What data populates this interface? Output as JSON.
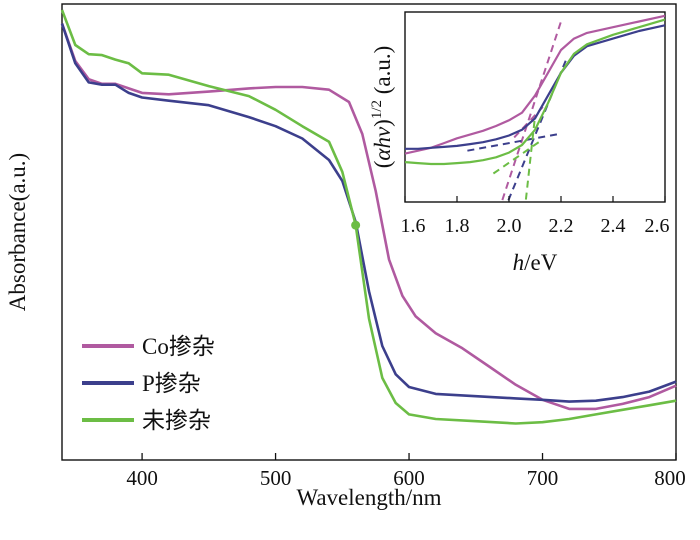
{
  "colors": {
    "co": "#b05aa0",
    "p": "#3c3f8c",
    "undoped": "#6cbd45"
  },
  "chart_data": [
    {
      "type": "line",
      "xlabel": "Wavelength/nm",
      "ylabel": "Absorbance(a.u.)",
      "xlim": [
        340,
        800
      ],
      "ylim": [
        0,
        1
      ],
      "xticks": [
        "400",
        "500",
        "600",
        "700",
        "800"
      ],
      "xtick_values": [
        400,
        500,
        600,
        700,
        800
      ],
      "legend_position": "bottom-left",
      "series": [
        {
          "name": "Co掺杂",
          "color": "#b05aa0",
          "x": [
            340,
            350,
            360,
            370,
            380,
            390,
            400,
            420,
            450,
            480,
            500,
            520,
            540,
            555,
            565,
            575,
            585,
            595,
            605,
            620,
            640,
            660,
            680,
            700,
            720,
            740,
            760,
            780,
            800
          ],
          "y": [
            0.957,
            0.875,
            0.835,
            0.825,
            0.825,
            0.815,
            0.805,
            0.802,
            0.808,
            0.815,
            0.818,
            0.818,
            0.812,
            0.785,
            0.715,
            0.59,
            0.44,
            0.36,
            0.315,
            0.278,
            0.245,
            0.205,
            0.165,
            0.132,
            0.112,
            0.112,
            0.123,
            0.138,
            0.163
          ]
        },
        {
          "name": "P掺杂",
          "color": "#3c3f8c",
          "x": [
            340,
            350,
            360,
            370,
            380,
            390,
            400,
            420,
            450,
            480,
            500,
            520,
            540,
            550,
            560,
            570,
            580,
            590,
            600,
            620,
            650,
            680,
            700,
            720,
            740,
            760,
            780,
            800
          ],
          "y": [
            0.957,
            0.87,
            0.828,
            0.823,
            0.823,
            0.805,
            0.795,
            0.788,
            0.778,
            0.752,
            0.732,
            0.705,
            0.658,
            0.612,
            0.522,
            0.37,
            0.25,
            0.188,
            0.16,
            0.145,
            0.14,
            0.135,
            0.132,
            0.128,
            0.13,
            0.138,
            0.15,
            0.172
          ]
        },
        {
          "name": "未掺杂",
          "color": "#6cbd45",
          "x": [
            340,
            350,
            360,
            370,
            380,
            390,
            400,
            420,
            450,
            480,
            500,
            520,
            540,
            550,
            560,
            570,
            580,
            590,
            600,
            620,
            650,
            680,
            700,
            720,
            740,
            760,
            780,
            800
          ],
          "y": [
            0.987,
            0.91,
            0.89,
            0.888,
            0.878,
            0.87,
            0.848,
            0.845,
            0.82,
            0.798,
            0.768,
            0.732,
            0.698,
            0.632,
            0.515,
            0.31,
            0.18,
            0.125,
            0.1,
            0.09,
            0.085,
            0.08,
            0.083,
            0.09,
            0.1,
            0.11,
            0.12,
            0.13
          ]
        }
      ]
    },
    {
      "type": "line",
      "xlabel_italic": "h",
      "xlabel_rest": "/eV",
      "ylabel_paren_open": "(",
      "ylabel_italic": "αhv",
      "ylabel_paren_close": ")",
      "ylabel_sup": "1/2",
      "ylabel_units": " (a.u.)",
      "xlim": [
        1.6,
        2.6
      ],
      "ylim": [
        0,
        1
      ],
      "xticks": [
        "1.6",
        "1.8",
        "2.0",
        "2.2",
        "2.4",
        "2.6"
      ],
      "xtick_values": [
        1.6,
        1.8,
        2.0,
        2.2,
        2.4,
        2.6
      ],
      "series": [
        {
          "name": "Co掺杂",
          "color": "#b05aa0",
          "x": [
            1.6,
            1.65,
            1.7,
            1.75,
            1.8,
            1.85,
            1.9,
            1.95,
            2.0,
            2.05,
            2.1,
            2.15,
            2.2,
            2.25,
            2.3,
            2.4,
            2.5,
            2.6
          ],
          "y": [
            0.255,
            0.27,
            0.285,
            0.31,
            0.335,
            0.355,
            0.375,
            0.4,
            0.43,
            0.47,
            0.56,
            0.68,
            0.8,
            0.86,
            0.89,
            0.92,
            0.95,
            0.98
          ]
        },
        {
          "name": "P掺杂",
          "color": "#3c3f8c",
          "x": [
            1.6,
            1.65,
            1.7,
            1.75,
            1.8,
            1.85,
            1.9,
            1.95,
            2.0,
            2.05,
            2.1,
            2.15,
            2.2,
            2.25,
            2.3,
            2.4,
            2.5,
            2.6
          ],
          "y": [
            0.28,
            0.28,
            0.285,
            0.29,
            0.295,
            0.305,
            0.315,
            0.33,
            0.35,
            0.38,
            0.44,
            0.56,
            0.68,
            0.77,
            0.82,
            0.86,
            0.9,
            0.93
          ]
        },
        {
          "name": "未掺杂",
          "color": "#6cbd45",
          "x": [
            1.6,
            1.65,
            1.7,
            1.75,
            1.8,
            1.85,
            1.9,
            1.95,
            2.0,
            2.05,
            2.1,
            2.15,
            2.2,
            2.25,
            2.3,
            2.4,
            2.5,
            2.6
          ],
          "y": [
            0.21,
            0.205,
            0.2,
            0.2,
            0.205,
            0.21,
            0.22,
            0.235,
            0.26,
            0.3,
            0.38,
            0.52,
            0.68,
            0.78,
            0.83,
            0.88,
            0.92,
            0.96
          ]
        }
      ],
      "tangent_lines": [
        {
          "color": "#b05aa0",
          "steep": [
            [
              1.96,
              -0.05
            ],
            [
              2.2,
              0.95
            ]
          ],
          "base": [
            [
              2.02,
              0.34
            ],
            [
              2.13,
              0.5
            ]
          ]
        },
        {
          "color": "#3c3f8c",
          "steep": [
            [
              1.98,
              -0.05
            ],
            [
              2.22,
              0.75
            ]
          ],
          "base": [
            [
              1.84,
              0.27
            ],
            [
              2.2,
              0.36
            ]
          ]
        },
        {
          "color": "#6cbd45",
          "steep": [
            [
              2.06,
              -0.05
            ],
            [
              2.1,
              0.45
            ]
          ],
          "base": [
            [
              1.94,
              0.15
            ],
            [
              2.12,
              0.32
            ]
          ]
        }
      ]
    }
  ]
}
